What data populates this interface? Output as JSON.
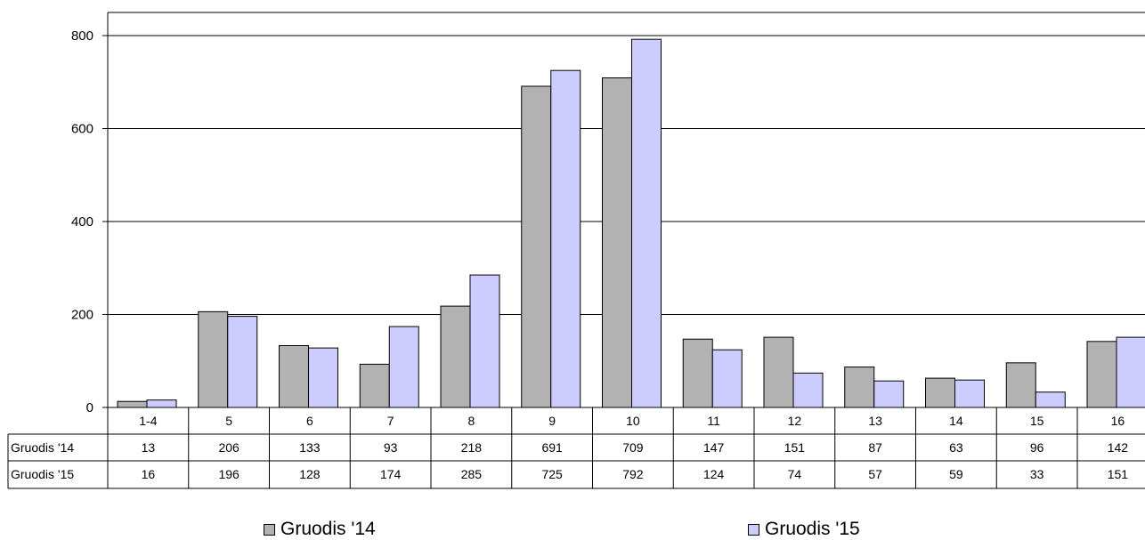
{
  "chart_data": {
    "type": "bar",
    "categories": [
      "1-4",
      "5",
      "6",
      "7",
      "8",
      "9",
      "10",
      "11",
      "12",
      "13",
      "14",
      "15",
      "16"
    ],
    "series": [
      {
        "name": "Gruodis '14",
        "color": "#b2b2b2",
        "values": [
          13,
          206,
          133,
          93,
          218,
          691,
          709,
          147,
          151,
          87,
          63,
          96,
          142
        ]
      },
      {
        "name": "Gruodis '15",
        "color": "#ccccff",
        "values": [
          16,
          196,
          128,
          174,
          285,
          725,
          792,
          124,
          74,
          57,
          59,
          33,
          151
        ]
      }
    ],
    "y_ticks": [
      "0",
      "200",
      "400",
      "600",
      "800"
    ],
    "ylim": [
      0,
      800
    ],
    "grid": true,
    "legend": "bottom",
    "data_table": true
  }
}
